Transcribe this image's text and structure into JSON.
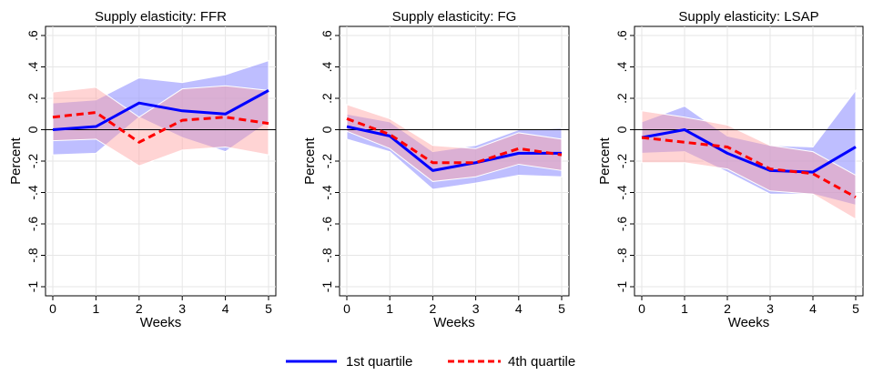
{
  "chart_data": [
    {
      "type": "line",
      "title": "Supply elasticity: FFR",
      "xlabel": "Weeks",
      "ylabel": "Percent",
      "x": [
        0,
        1,
        2,
        3,
        4,
        5
      ],
      "ylim": [
        -1,
        0.6
      ],
      "yticks": [
        ".6",
        ".4",
        ".2",
        "0",
        "-.2",
        "-.4",
        "-.6",
        "-.8",
        "-1"
      ],
      "xticks": [
        "0",
        "1",
        "2",
        "3",
        "4",
        "5"
      ],
      "series": [
        {
          "name": "1st quartile",
          "color": "#0000ff",
          "style": "solid",
          "values": [
            0.0,
            0.02,
            0.17,
            0.12,
            0.1,
            0.25
          ],
          "upper": [
            0.17,
            0.19,
            0.33,
            0.3,
            0.35,
            0.44
          ],
          "lower": [
            -0.16,
            -0.15,
            0.08,
            -0.05,
            -0.14,
            0.05
          ]
        },
        {
          "name": "4th quartile",
          "color": "#ff0000",
          "style": "dashed",
          "values": [
            0.08,
            0.11,
            -0.08,
            0.06,
            0.08,
            0.04
          ],
          "upper": [
            0.24,
            0.27,
            0.08,
            0.26,
            0.28,
            0.25
          ],
          "lower": [
            -0.07,
            -0.06,
            -0.23,
            -0.13,
            -0.11,
            -0.16
          ]
        }
      ]
    },
    {
      "type": "line",
      "title": "Supply elasticity: FG",
      "xlabel": "Weeks",
      "ylabel": "Percent",
      "x": [
        0,
        1,
        2,
        3,
        4,
        5
      ],
      "ylim": [
        -1,
        0.6
      ],
      "yticks": [
        ".6",
        ".4",
        ".2",
        "0",
        "-.2",
        "-.4",
        "-.6",
        "-.8",
        "-1"
      ],
      "xticks": [
        "0",
        "1",
        "2",
        "3",
        "4",
        "5"
      ],
      "series": [
        {
          "name": "1st quartile",
          "color": "#0000ff",
          "style": "solid",
          "values": [
            0.02,
            -0.04,
            -0.26,
            -0.21,
            -0.15,
            -0.15
          ],
          "upper": [
            0.1,
            0.05,
            -0.14,
            -0.1,
            0.0,
            0.01
          ],
          "lower": [
            -0.06,
            -0.14,
            -0.38,
            -0.34,
            -0.29,
            -0.3
          ]
        },
        {
          "name": "4th quartile",
          "color": "#ff0000",
          "style": "dashed",
          "values": [
            0.07,
            -0.03,
            -0.21,
            -0.21,
            -0.12,
            -0.16
          ],
          "upper": [
            0.16,
            0.07,
            -0.1,
            -0.12,
            -0.02,
            -0.06
          ],
          "lower": [
            -0.01,
            -0.12,
            -0.33,
            -0.3,
            -0.22,
            -0.26
          ]
        }
      ]
    },
    {
      "type": "line",
      "title": "Supply elasticity: LSAP",
      "xlabel": "Weeks",
      "ylabel": "Percent",
      "x": [
        0,
        1,
        2,
        3,
        4,
        5
      ],
      "ylim": [
        -1,
        0.6
      ],
      "yticks": [
        ".6",
        ".4",
        ".2",
        "0",
        "-.2",
        "-.4",
        "-.6",
        "-.8",
        "-1"
      ],
      "xticks": [
        "0",
        "1",
        "2",
        "3",
        "4",
        "5"
      ],
      "series": [
        {
          "name": "1st quartile",
          "color": "#0000ff",
          "style": "solid",
          "values": [
            -0.05,
            0.0,
            -0.15,
            -0.26,
            -0.27,
            -0.11
          ],
          "upper": [
            0.05,
            0.15,
            -0.04,
            -0.1,
            -0.11,
            0.25
          ],
          "lower": [
            -0.15,
            -0.14,
            -0.27,
            -0.41,
            -0.41,
            -0.48
          ]
        },
        {
          "name": "4th quartile",
          "color": "#ff0000",
          "style": "dashed",
          "values": [
            -0.05,
            -0.08,
            -0.11,
            -0.25,
            -0.28,
            -0.43
          ],
          "upper": [
            0.12,
            0.08,
            0.03,
            -0.1,
            -0.14,
            -0.29
          ],
          "lower": [
            -0.21,
            -0.21,
            -0.25,
            -0.39,
            -0.41,
            -0.57
          ]
        }
      ]
    }
  ],
  "legend": {
    "items": [
      {
        "label": "1st quartile",
        "color": "#0000ff",
        "style": "solid"
      },
      {
        "label": "4th quartile",
        "color": "#ff0000",
        "style": "dashed"
      }
    ]
  }
}
